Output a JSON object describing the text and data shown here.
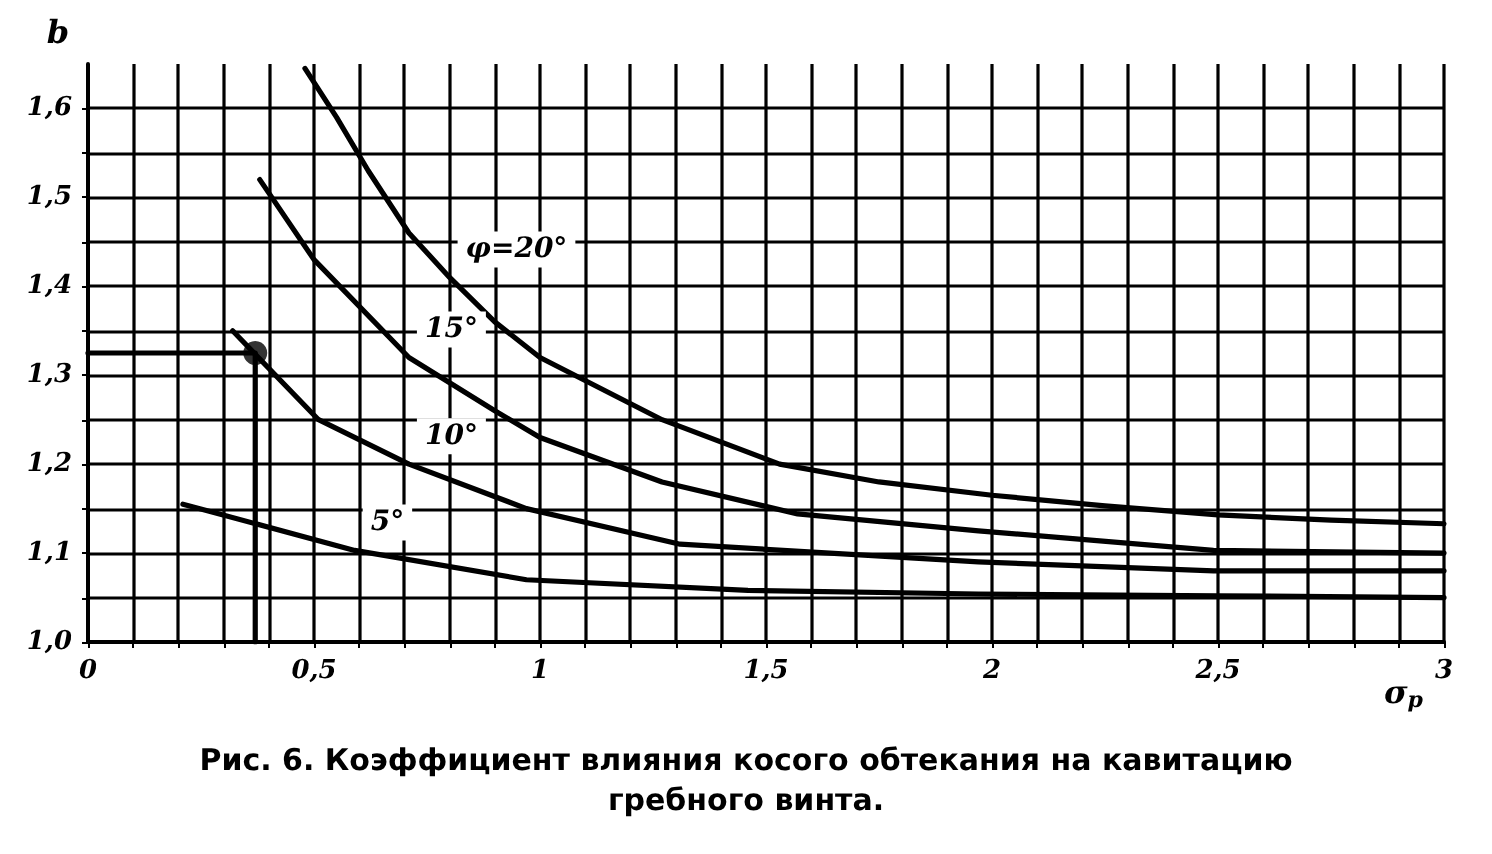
{
  "chart_data": {
    "type": "line",
    "title": "Рис. 6. Коэффициент влияния косого обтекания на кавитацию\nгребного винта.",
    "xlabel": "σ$_{p}$",
    "ylabel": "b",
    "xlim": [
      0,
      3
    ],
    "ylim": [
      1.0,
      1.65
    ],
    "xticks": [
      {
        "value": 0,
        "label": "0"
      },
      {
        "value": 0.1,
        "label": null
      },
      {
        "value": 0.2,
        "label": null
      },
      {
        "value": 0.3,
        "label": null
      },
      {
        "value": 0.4,
        "label": null
      },
      {
        "value": 0.5,
        "label": "0,5"
      },
      {
        "value": 0.6,
        "label": null
      },
      {
        "value": 0.7,
        "label": null
      },
      {
        "value": 0.8,
        "label": null
      },
      {
        "value": 0.9,
        "label": null
      },
      {
        "value": 1,
        "label": "1"
      },
      {
        "value": 1.1,
        "label": null
      },
      {
        "value": 1.2,
        "label": null
      },
      {
        "value": 1.3,
        "label": null
      },
      {
        "value": 1.4,
        "label": null
      },
      {
        "value": 1.5,
        "label": "1,5"
      },
      {
        "value": 1.6,
        "label": null
      },
      {
        "value": 1.7,
        "label": null
      },
      {
        "value": 1.8,
        "label": null
      },
      {
        "value": 1.9,
        "label": null
      },
      {
        "value": 2,
        "label": "2"
      },
      {
        "value": 2.1,
        "label": null
      },
      {
        "value": 2.2,
        "label": null
      },
      {
        "value": 2.3,
        "label": null
      },
      {
        "value": 2.4,
        "label": null
      },
      {
        "value": 2.5,
        "label": "2,5"
      },
      {
        "value": 2.6,
        "label": null
      },
      {
        "value": 2.7,
        "label": null
      },
      {
        "value": 2.8,
        "label": null
      },
      {
        "value": 2.9,
        "label": null
      },
      {
        "value": 3,
        "label": "3"
      }
    ],
    "yticks": [
      {
        "value": 1.0,
        "label": "1,0"
      },
      {
        "value": 1.05,
        "label": null
      },
      {
        "value": 1.1,
        "label": "1,1"
      },
      {
        "value": 1.15,
        "label": null
      },
      {
        "value": 1.2,
        "label": "1,2"
      },
      {
        "value": 1.25,
        "label": null
      },
      {
        "value": 1.3,
        "label": "1,3"
      },
      {
        "value": 1.35,
        "label": null
      },
      {
        "value": 1.4,
        "label": "1,4"
      },
      {
        "value": 1.45,
        "label": null
      },
      {
        "value": 1.5,
        "label": "1,5"
      },
      {
        "value": 1.55,
        "label": null
      },
      {
        "value": 1.6,
        "label": "1,6"
      }
    ],
    "grid": true,
    "line_style": "solid",
    "marker": "none",
    "series": [
      {
        "color": "#000000",
        "x": [
          0.48,
          0.55,
          0.62,
          0.71,
          0.8,
          0.9,
          1.0,
          1.27,
          1.53,
          1.75,
          2.0,
          2.25,
          2.5,
          2.75,
          3.0
        ],
        "values": [
          1.645,
          1.59,
          1.53,
          1.46,
          1.41,
          1.36,
          1.32,
          1.25,
          1.2,
          1.18,
          1.165,
          1.153,
          1.143,
          1.137,
          1.133
        ]
      },
      {
        "color": "#000000",
        "x": [
          0.38,
          0.5,
          0.71,
          0.9,
          1.0,
          1.27,
          1.57,
          1.97,
          2.49,
          3.0
        ],
        "values": [
          1.52,
          1.43,
          1.32,
          1.26,
          1.23,
          1.18,
          1.144,
          1.125,
          1.103,
          1.1
        ]
      },
      {
        "color": "#000000",
        "x": [
          0.32,
          0.51,
          0.71,
          0.97,
          1.31,
          1.97,
          2.49,
          3.0
        ],
        "values": [
          1.35,
          1.25,
          1.2,
          1.15,
          1.11,
          1.09,
          1.08,
          1.08
        ]
      },
      {
        "color": "#000000",
        "x": [
          0.21,
          0.59,
          0.97,
          1.46,
          1.97,
          2.5,
          3.0
        ],
        "values": [
          1.155,
          1.103,
          1.07,
          1.058,
          1.054,
          1.052,
          1.05
        ]
      },
      {
        "color": "#000000",
        "x": [
          0,
          0.37,
          0.37
        ],
        "values": [
          1.325,
          1.325,
          1.0
        ]
      },
      {
        "type": "scatter",
        "marker": "circle",
        "color": "#000000",
        "x": [
          0.37
        ],
        "values": [
          1.325
        ]
      }
    ],
    "annotations": [
      {
        "text": "φ=20°",
        "x": 0.8,
        "y": 1.41
      },
      {
        "text": "15°",
        "x": 0.71,
        "y": 1.32
      },
      {
        "text": "10°",
        "x": 0.71,
        "y": 1.2
      },
      {
        "text": "5°",
        "x": 0.59,
        "y": 1.103
      }
    ]
  }
}
